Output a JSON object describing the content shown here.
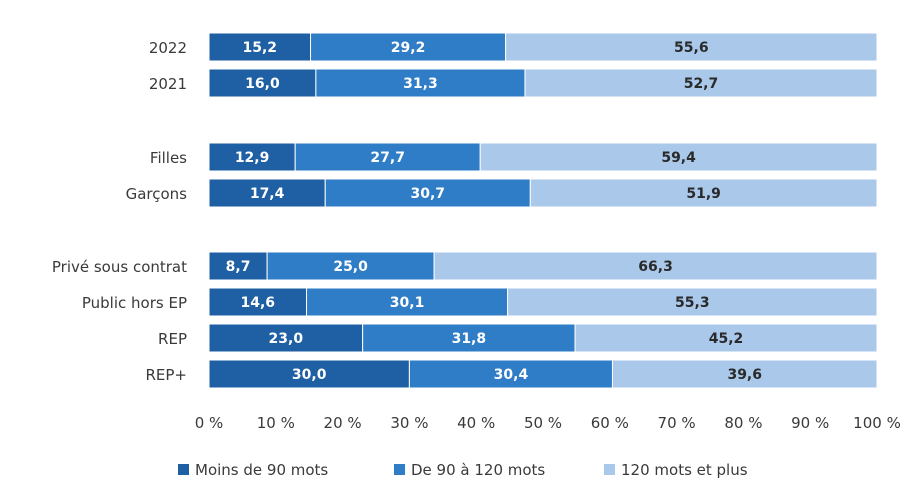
{
  "chart_data": {
    "type": "bar",
    "orientation": "horizontal",
    "stacked": true,
    "title": "",
    "xlabel": "",
    "ylabel": "",
    "xlim": [
      0,
      100
    ],
    "x_ticks": [
      "0 %",
      "10 %",
      "20 %",
      "30 %",
      "40 %",
      "50 %",
      "60 %",
      "70 %",
      "80 %",
      "90 %",
      "100 %"
    ],
    "grid": false,
    "legend_position": "bottom",
    "categories": [
      "2022",
      "2021",
      "Filles",
      "Garçons",
      "Privé sous contrat",
      "Public hors EP",
      "REP",
      "REP+"
    ],
    "category_groups": [
      [
        0,
        1
      ],
      [
        2,
        3
      ],
      [
        4,
        5,
        6,
        7
      ]
    ],
    "series": [
      {
        "name": "Moins de 90 mots",
        "color": "#1f5fa3",
        "text_color": "#ffffff",
        "values": [
          15.2,
          16.0,
          12.9,
          17.4,
          8.7,
          14.6,
          23.0,
          30.0
        ],
        "labels": [
          "15,2",
          "16,0",
          "12,9",
          "17,4",
          "8,7",
          "14,6",
          "23,0",
          "30,0"
        ]
      },
      {
        "name": "De 90 à 120 mots",
        "color": "#2f7dc6",
        "text_color": "#ffffff",
        "values": [
          29.2,
          31.3,
          27.7,
          30.7,
          25.0,
          30.1,
          31.8,
          30.4
        ],
        "labels": [
          "29,2",
          "31,3",
          "27,7",
          "30,7",
          "25,0",
          "30,1",
          "31,8",
          "30,4"
        ]
      },
      {
        "name": "120 mots et plus",
        "color": "#a9c8ea",
        "text_color": "#2a2a2a",
        "values": [
          55.6,
          52.7,
          59.4,
          51.9,
          66.3,
          55.3,
          45.2,
          39.6
        ],
        "labels": [
          "55,6",
          "52,7",
          "59,4",
          "51,9",
          "66,3",
          "55,3",
          "45,2",
          "39,6"
        ]
      }
    ]
  }
}
